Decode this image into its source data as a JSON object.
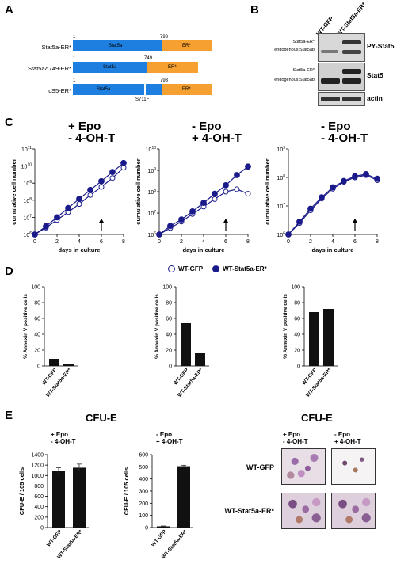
{
  "panels": {
    "a": "A",
    "b": "B",
    "c": "C",
    "d": "D",
    "e": "E"
  },
  "panelA": {
    "constructs": [
      {
        "name": "Stat5a-ER*",
        "stat_label": "Stat5a",
        "er_label": "ER*",
        "num_start": "1",
        "num_end": "793"
      },
      {
        "name": "Stat5aΔ749-ER*",
        "stat_label": "Stat5a",
        "er_label": "ER*",
        "num_start": "1",
        "num_end": "749"
      },
      {
        "name": "cS5-ER*",
        "stat_label": "Stat5a",
        "er_label": "ER*",
        "num_start": "1",
        "num_end": "793",
        "mutation": "S711F"
      }
    ],
    "colors": {
      "stat": "#1f7fe0",
      "er": "#f5a030"
    }
  },
  "panelB": {
    "lanes": [
      "WT-GFP",
      "WT-Stat5a-ER*"
    ],
    "blots": [
      {
        "name": "PY-Stat5",
        "side_top": "Stat5a-ER*",
        "side_bottom": "endogenous Stat5ab"
      },
      {
        "name": "Stat5",
        "side_top": "Stat5a-ER*",
        "side_bottom": "endogenous Stat5ab"
      },
      {
        "name": "actin"
      }
    ]
  },
  "panelC": {
    "conditions": [
      {
        "line1": "+ Epo",
        "line2": "- 4-OH-T"
      },
      {
        "line1": "- Epo",
        "line2": "+ 4-OH-T"
      },
      {
        "line1": "- Epo",
        "line2": "- 4-OH-T"
      }
    ],
    "ylabel": "cumulative cell number",
    "xlabel": "days in culture",
    "xticks": [
      "0",
      "2",
      "4",
      "6",
      "8"
    ]
  },
  "legend": {
    "open": "WT-GFP",
    "filled": "WT-Stat5a-ER*"
  },
  "panelD": {
    "ylabel": "% Annexin V positive cells",
    "yticks": [
      "0",
      "20",
      "40",
      "60",
      "80",
      "100"
    ],
    "categories": [
      "WT-GFP",
      "WT-Stat5a-ER*"
    ]
  },
  "panelE": {
    "cfu_title": "CFU-E",
    "cfu_title2": "CFU-E",
    "ylabel": "CFU-E / 105 cells",
    "categories": [
      "WT-GFP",
      "WT-Stat5a-ER*"
    ],
    "conditions": [
      {
        "line1": "+ Epo",
        "line2": "- 4-OH-T",
        "yticks": [
          "0",
          "200",
          "400",
          "600",
          "800",
          "1000",
          "1200",
          "1400"
        ]
      },
      {
        "line1": "- Epo",
        "line2": "+ 4-OH-T",
        "yticks": [
          "0",
          "100",
          "200",
          "300",
          "400",
          "500",
          "600"
        ]
      }
    ],
    "micro_rows": [
      "WT-GFP",
      "WT-Stat5a-ER*"
    ],
    "micro_cols": [
      {
        "line1": "+ Epo",
        "line2": "- 4-OH-T"
      },
      {
        "line1": "- Epo",
        "line2": "+ 4-OH-T"
      }
    ]
  },
  "chart_data": [
    {
      "type": "line",
      "panel": "C1",
      "yscale": "log",
      "ylim": [
        1000000,
        100000000000
      ],
      "xlim": [
        0,
        8
      ],
      "xlabel": "days in culture",
      "ylabel": "cumulative cell number",
      "series": [
        {
          "name": "WT-GFP",
          "x": [
            0,
            1,
            2,
            3,
            4,
            5,
            6,
            7,
            8
          ],
          "y": [
            1000000,
            2500000,
            7000000,
            20000000,
            60000000,
            200000000,
            600000000,
            2000000000,
            8000000000
          ]
        },
        {
          "name": "WT-Stat5a-ER*",
          "x": [
            0,
            1,
            2,
            3,
            4,
            5,
            6,
            7,
            8
          ],
          "y": [
            1000000,
            3000000,
            10000000,
            35000000,
            120000000,
            400000000,
            1300000000,
            4500000000,
            15000000000
          ]
        }
      ]
    },
    {
      "type": "line",
      "panel": "C2",
      "yscale": "log",
      "ylim": [
        1000000,
        10000000000
      ],
      "xlim": [
        0,
        8
      ],
      "xlabel": "days in culture",
      "ylabel": "cumulative cell number",
      "series": [
        {
          "name": "WT-GFP",
          "x": [
            0,
            1,
            2,
            3,
            4,
            5,
            6,
            7,
            8
          ],
          "y": [
            1000000,
            2000000,
            4000000,
            9000000,
            20000000,
            45000000,
            100000000,
            130000000,
            80000000
          ]
        },
        {
          "name": "WT-Stat5a-ER*",
          "x": [
            0,
            1,
            2,
            3,
            4,
            5,
            6,
            7,
            8
          ],
          "y": [
            1000000,
            2500000,
            5000000,
            12000000,
            30000000,
            80000000,
            200000000,
            600000000,
            1500000000
          ]
        }
      ]
    },
    {
      "type": "line",
      "panel": "C3",
      "yscale": "log",
      "ylim": [
        1000000,
        1000000000
      ],
      "xlim": [
        0,
        8
      ],
      "xlabel": "days in culture",
      "ylabel": "cumulative cell number",
      "series": [
        {
          "name": "WT-GFP",
          "x": [
            0,
            1,
            2,
            3,
            4,
            5,
            6,
            7,
            8
          ],
          "y": [
            1000000,
            2500000,
            7000000,
            18000000,
            40000000,
            70000000,
            100000000,
            120000000,
            80000000
          ]
        },
        {
          "name": "WT-Stat5a-ER*",
          "x": [
            0,
            1,
            2,
            3,
            4,
            5,
            6,
            7,
            8
          ],
          "y": [
            1000000,
            2800000,
            8000000,
            20000000,
            45000000,
            75000000,
            110000000,
            130000000,
            90000000
          ]
        }
      ]
    },
    {
      "type": "bar",
      "panel": "D1",
      "categories": [
        "WT-GFP",
        "WT-Stat5a-ER*"
      ],
      "values": [
        9,
        3
      ],
      "ylim": [
        0,
        100
      ],
      "ylabel": "% Annexin V positive cells"
    },
    {
      "type": "bar",
      "panel": "D2",
      "categories": [
        "WT-GFP",
        "WT-Stat5a-ER*"
      ],
      "values": [
        54,
        16
      ],
      "ylim": [
        0,
        100
      ],
      "ylabel": "% Annexin V positive cells"
    },
    {
      "type": "bar",
      "panel": "D3",
      "categories": [
        "WT-GFP",
        "WT-Stat5a-ER*"
      ],
      "values": [
        68,
        72
      ],
      "ylim": [
        0,
        100
      ],
      "ylabel": "% Annexin V positive cells"
    },
    {
      "type": "bar",
      "panel": "E1",
      "categories": [
        "WT-GFP",
        "WT-Stat5a-ER*"
      ],
      "values": [
        1090,
        1150
      ],
      "errors": [
        60,
        70
      ],
      "ylim": [
        0,
        1400
      ],
      "ylabel": "CFU-E / 105 cells"
    },
    {
      "type": "bar",
      "panel": "E2",
      "categories": [
        "WT-GFP",
        "WT-Stat5a-ER*"
      ],
      "values": [
        10,
        505
      ],
      "errors": [
        3,
        8
      ],
      "ylim": [
        0,
        600
      ],
      "ylabel": "CFU-E / 105 cells"
    }
  ]
}
